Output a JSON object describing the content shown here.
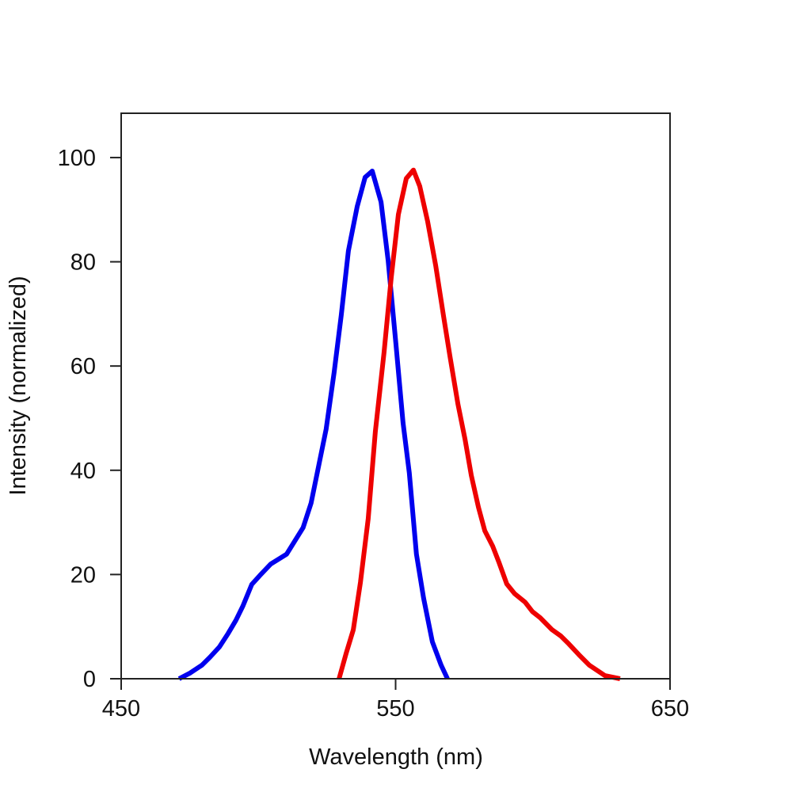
{
  "chart_data": {
    "type": "line",
    "title": "",
    "xlabel": "Wavelength (nm)",
    "ylabel": "Intensity (normalized)",
    "xlim": [
      450,
      650
    ],
    "ylim": [
      0,
      108.5
    ],
    "xticks": [
      450,
      550,
      650
    ],
    "yticks": [
      0,
      20,
      40,
      60,
      80,
      100
    ],
    "grid": false,
    "legend": "none",
    "series": [
      {
        "color": "#0000ee",
        "points": [
          [
            471.1,
            0
          ],
          [
            475.1,
            1.1
          ],
          [
            479.4,
            2.6
          ],
          [
            482.3,
            4.1
          ],
          [
            485.8,
            6.1
          ],
          [
            489.0,
            8.7
          ],
          [
            491.8,
            11.2
          ],
          [
            494.4,
            14.0
          ],
          [
            497.6,
            18.1
          ],
          [
            500.5,
            19.8
          ],
          [
            504.5,
            22.0
          ],
          [
            510.3,
            23.9
          ],
          [
            516.3,
            29.0
          ],
          [
            519.2,
            33.7
          ],
          [
            524.7,
            47.9
          ],
          [
            527.6,
            58.8
          ],
          [
            530.2,
            69.8
          ],
          [
            532.8,
            82.1
          ],
          [
            536.0,
            90.6
          ],
          [
            538.9,
            96.2
          ],
          [
            541.5,
            97.4
          ],
          [
            544.7,
            91.5
          ],
          [
            547.3,
            80.2
          ],
          [
            550.1,
            64.4
          ],
          [
            552.7,
            49.1
          ],
          [
            555.0,
            39.5
          ],
          [
            557.6,
            23.9
          ],
          [
            560.2,
            15.5
          ],
          [
            563.4,
            7.1
          ],
          [
            566.6,
            2.6
          ],
          [
            568.9,
            0
          ]
        ]
      },
      {
        "color": "#ee0000",
        "points": [
          [
            529.4,
            0
          ],
          [
            532.0,
            4.9
          ],
          [
            534.6,
            9.4
          ],
          [
            537.2,
            18.5
          ],
          [
            540.0,
            30.7
          ],
          [
            542.6,
            47.4
          ],
          [
            545.8,
            62.6
          ],
          [
            548.4,
            77.0
          ],
          [
            551.0,
            89.1
          ],
          [
            553.9,
            96.0
          ],
          [
            556.5,
            97.6
          ],
          [
            558.8,
            94.5
          ],
          [
            561.7,
            87.7
          ],
          [
            564.6,
            79.3
          ],
          [
            567.5,
            69.5
          ],
          [
            569.8,
            61.9
          ],
          [
            572.7,
            52.7
          ],
          [
            575.3,
            45.9
          ],
          [
            577.6,
            39.0
          ],
          [
            580.2,
            32.9
          ],
          [
            582.5,
            28.4
          ],
          [
            585.4,
            25.4
          ],
          [
            587.7,
            22.3
          ],
          [
            590.5,
            18.2
          ],
          [
            593.4,
            16.3
          ],
          [
            597.2,
            14.7
          ],
          [
            599.8,
            12.9
          ],
          [
            602.7,
            11.7
          ],
          [
            607.0,
            9.4
          ],
          [
            610.2,
            8.2
          ],
          [
            613.1,
            6.7
          ],
          [
            616.8,
            4.6
          ],
          [
            620.6,
            2.6
          ],
          [
            626.3,
            0.6
          ],
          [
            631.8,
            0
          ]
        ]
      }
    ]
  }
}
